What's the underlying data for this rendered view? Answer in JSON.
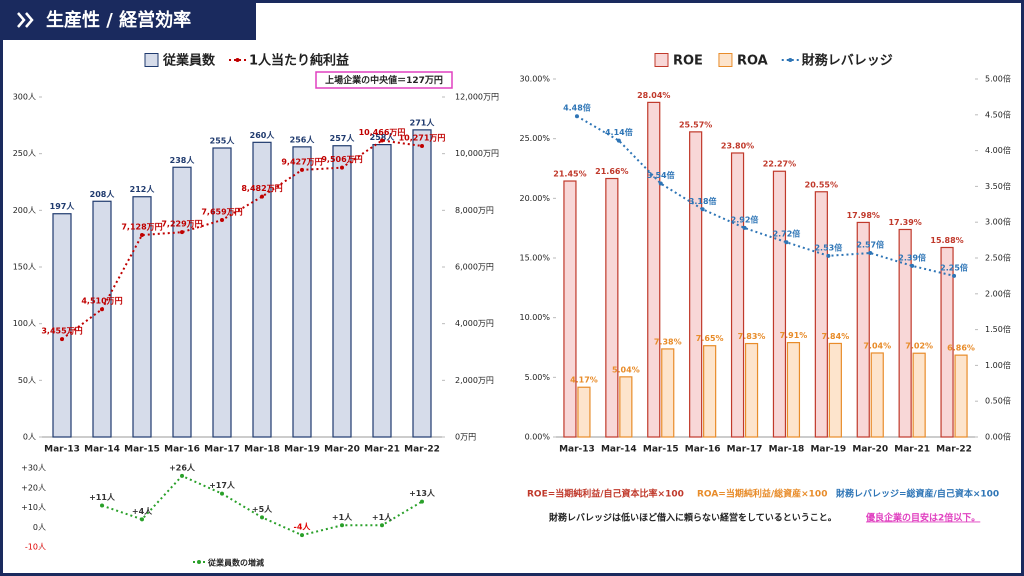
{
  "header": {
    "title": "生産性 / 経営効率"
  },
  "chart_data": [
    {
      "type": "combo",
      "annotation": "上場企業の中央値＝127万円",
      "categories": [
        "Mar-13",
        "Mar-14",
        "Mar-15",
        "Mar-16",
        "Mar-17",
        "Mar-18",
        "Mar-19",
        "Mar-20",
        "Mar-21",
        "Mar-22"
      ],
      "series": [
        {
          "name": "従業員数",
          "type": "bar",
          "color": "#d6dcea",
          "stroke": "#1f3a6e",
          "label_color": "#1f3a6e",
          "values": [
            197,
            208,
            212,
            238,
            255,
            260,
            256,
            257,
            258,
            271
          ],
          "value_labels": [
            "197人",
            "208人",
            "212人",
            "238人",
            "255人",
            "260人",
            "256人",
            "257人",
            "258人",
            "271人"
          ]
        },
        {
          "name": "1人当たり純利益",
          "type": "line",
          "axis": "y2",
          "color": "#c00000",
          "label_color": "#c00000",
          "values": [
            3455,
            4510,
            7128,
            7229,
            7659,
            8482,
            9427,
            9506,
            10466,
            10271
          ],
          "value_labels": [
            "3,455万円",
            "4,510万円",
            "7,128万円",
            "7,229万円",
            "7,659万円",
            "8,482万円",
            "9,427万円",
            "9,506万円",
            "10,466万円",
            "10,271万円"
          ]
        }
      ],
      "ylim": [
        0,
        300
      ],
      "yticks": [
        {
          "value": 0,
          "label": "0人"
        },
        {
          "value": 50,
          "label": "50人"
        },
        {
          "value": 100,
          "label": "100人"
        },
        {
          "value": 150,
          "label": "150人"
        },
        {
          "value": 200,
          "label": "200人"
        },
        {
          "value": 250,
          "label": "250人"
        },
        {
          "value": 300,
          "label": "300人"
        }
      ],
      "y2lim": [
        0,
        12000
      ],
      "y2ticks": [
        {
          "value": 0,
          "label": "0万円"
        },
        {
          "value": 2000,
          "label": "2,000万円"
        },
        {
          "value": 4000,
          "label": "4,000万円"
        },
        {
          "value": 6000,
          "label": "6,000万円"
        },
        {
          "value": 8000,
          "label": "8,000万円"
        },
        {
          "value": 10000,
          "label": "10,000万円"
        },
        {
          "value": 12000,
          "label": "12,000万円"
        }
      ],
      "grid": false
    },
    {
      "type": "line",
      "series": [
        {
          "name": "従業員数の増減",
          "type": "line",
          "color": "#2aa02a",
          "label_color": "#333333",
          "values": [
            null,
            11,
            4,
            26,
            17,
            5,
            -4,
            1,
            1,
            13
          ],
          "value_labels": [
            null,
            "+11人",
            "+4人",
            "+26人",
            "+17人",
            "+5人",
            "-4人",
            "+1人",
            "+1人",
            "+13人"
          ]
        }
      ],
      "negative_color": "#e00000",
      "ylim": [
        -10,
        30
      ],
      "yticks": [
        {
          "value": 30,
          "label": "+30人"
        },
        {
          "value": 20,
          "label": "+20人"
        },
        {
          "value": 10,
          "label": "+10人"
        },
        {
          "value": 0,
          "label": "0人"
        },
        {
          "value": -10,
          "label": "-10人"
        }
      ],
      "grid": false
    },
    {
      "type": "combo",
      "categories": [
        "Mar-13",
        "Mar-14",
        "Mar-15",
        "Mar-16",
        "Mar-17",
        "Mar-18",
        "Mar-19",
        "Mar-20",
        "Mar-21",
        "Mar-22"
      ],
      "series": [
        {
          "name": "ROE",
          "type": "bar",
          "color": "#f8d7d7",
          "stroke": "#c0392b",
          "label_color": "#c0392b",
          "values": [
            21.45,
            21.66,
            28.04,
            25.57,
            23.8,
            22.27,
            20.55,
            17.98,
            17.39,
            15.88
          ],
          "value_labels": [
            "21.45%",
            "21.66%",
            "28.04%",
            "25.57%",
            "23.80%",
            "22.27%",
            "20.55%",
            "17.98%",
            "17.39%",
            "15.88%"
          ]
        },
        {
          "name": "ROA",
          "type": "bar",
          "color": "#fde4cc",
          "stroke": "#e88c2a",
          "label_color": "#e88c2a",
          "values": [
            4.17,
            5.04,
            7.38,
            7.65,
            7.83,
            7.91,
            7.84,
            7.04,
            7.02,
            6.86
          ],
          "value_labels": [
            "4.17%",
            "5.04%",
            "7.38%",
            "7.65%",
            "7.83%",
            "7.91%",
            "7.84%",
            "7.04%",
            "7.02%",
            "6.86%"
          ]
        },
        {
          "name": "財務レバレッジ",
          "type": "line",
          "axis": "y2",
          "color": "#2e75b6",
          "label_color": "#2e75b6",
          "values": [
            4.48,
            4.14,
            3.54,
            3.18,
            2.92,
            2.72,
            2.53,
            2.57,
            2.39,
            2.25
          ],
          "value_labels": [
            "4.48倍",
            "4.14倍",
            "3.54倍",
            "3.18倍",
            "2.92倍",
            "2.72倍",
            "2.53倍",
            "2.57倍",
            "2.39倍",
            "2.25倍"
          ]
        }
      ],
      "ylim": [
        0,
        30
      ],
      "yticks": [
        {
          "value": 0,
          "label": "0.00%"
        },
        {
          "value": 5,
          "label": "5.00%"
        },
        {
          "value": 10,
          "label": "10.00%"
        },
        {
          "value": 15,
          "label": "15.00%"
        },
        {
          "value": 20,
          "label": "20.00%"
        },
        {
          "value": 25,
          "label": "25.00%"
        },
        {
          "value": 30,
          "label": "30.00%"
        }
      ],
      "y2lim": [
        0,
        5
      ],
      "y2ticks": [
        {
          "value": 0,
          "label": "0.00倍"
        },
        {
          "value": 0.5,
          "label": "0.50倍"
        },
        {
          "value": 1,
          "label": "1.00倍"
        },
        {
          "value": 1.5,
          "label": "1.50倍"
        },
        {
          "value": 2,
          "label": "2.00倍"
        },
        {
          "value": 2.5,
          "label": "2.50倍"
        },
        {
          "value": 3,
          "label": "3.00倍"
        },
        {
          "value": 3.5,
          "label": "3.50倍"
        },
        {
          "value": 4,
          "label": "4.00倍"
        },
        {
          "value": 4.5,
          "label": "4.50倍"
        },
        {
          "value": 5,
          "label": "5.00倍"
        }
      ],
      "grid": false,
      "notes": [
        "ROE=当期純利益/自己資本比率×100",
        "ROA=当期純利益/総資産×100",
        "財務レバレッジ=総資産/自己資本×100",
        "財務レバレッジは低いほど借入に頼らない経営をしているということ。",
        "優良企業の目安は2倍以下。"
      ]
    }
  ]
}
